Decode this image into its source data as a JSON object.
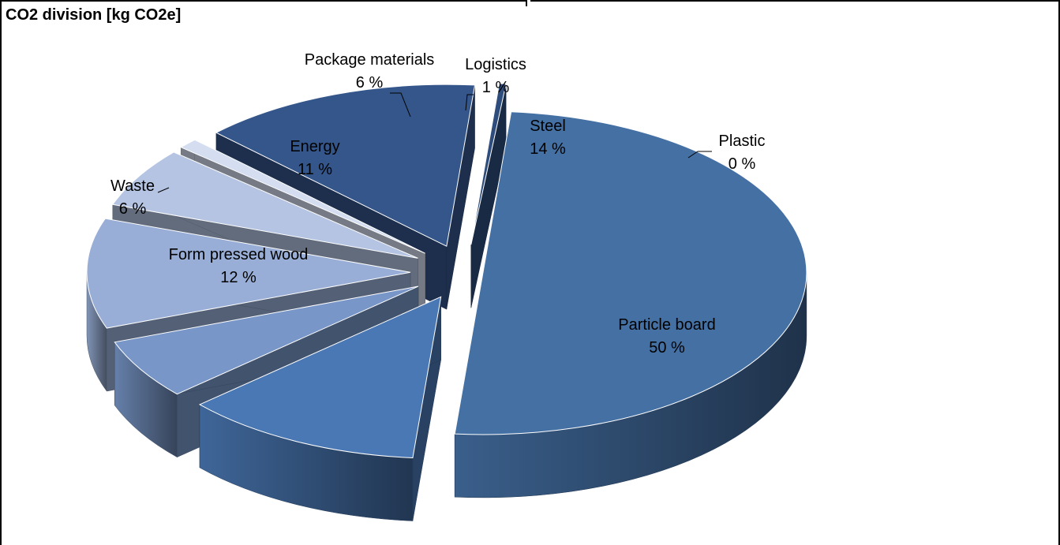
{
  "chart_data": {
    "type": "pie",
    "title": "CO2 division [kg CO2e]",
    "three_d": true,
    "exploded": true,
    "categories": [
      "Particle board",
      "Form pressed wood",
      "Waste",
      "Energy",
      "Package materials",
      "Logistics",
      "Steel",
      "Plastic"
    ],
    "values": [
      50,
      12,
      6,
      11,
      6,
      1,
      14,
      0
    ],
    "labels": [
      {
        "name": "Particle board",
        "pct": "50 %"
      },
      {
        "name": "Form pressed wood",
        "pct": "12 %"
      },
      {
        "name": "Waste",
        "pct": "6 %"
      },
      {
        "name": "Energy",
        "pct": "11 %"
      },
      {
        "name": "Package materials",
        "pct": "6 %"
      },
      {
        "name": "Logistics",
        "pct": "1 %"
      },
      {
        "name": "Steel",
        "pct": "14 %"
      },
      {
        "name": "Plastic",
        "pct": "0 %"
      }
    ],
    "colors": [
      "#4470A4",
      "#4A78B4",
      "#7896C8",
      "#98AED6",
      "#B4C4E2",
      "#D4DEF0",
      "#34568A",
      "#2E4C7C"
    ]
  }
}
